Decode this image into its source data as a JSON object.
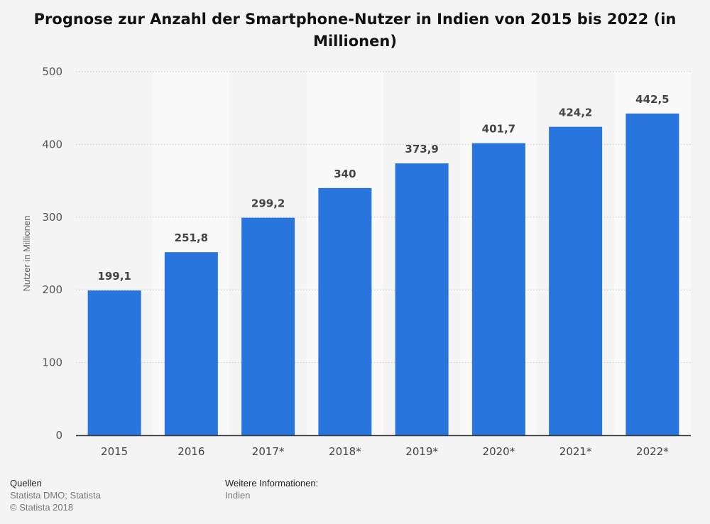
{
  "title": "Prognose zur Anzahl der Smartphone-Nutzer in Indien von 2015 bis 2022 (in Millionen)",
  "footer": {
    "sources_heading": "Quellen",
    "sources": "Statista DMO; Statista",
    "copyright": "© Statista 2018",
    "info_heading": "Weitere Informationen:",
    "info": "Indien"
  },
  "colors": {
    "bar": "#2876dd",
    "background": "#f4f4f4",
    "band": "#f9f9f9",
    "grid": "#c8c8c8"
  },
  "chart_data": {
    "type": "bar",
    "title": "Prognose zur Anzahl der Smartphone-Nutzer in Indien von 2015 bis 2022 (in Millionen)",
    "xlabel": "",
    "ylabel": "Nutzer in Millionen",
    "ylim": [
      0,
      500
    ],
    "yticks": [
      0,
      100,
      200,
      300,
      400,
      500
    ],
    "ytick_labels": [
      "0",
      "100",
      "200",
      "300",
      "400",
      "500"
    ],
    "grid": true,
    "categories": [
      "2015",
      "2016",
      "2017*",
      "2018*",
      "2019*",
      "2020*",
      "2021*",
      "2022*"
    ],
    "values": [
      199.1,
      251.8,
      299.2,
      340,
      373.9,
      401.7,
      424.2,
      442.5
    ],
    "data_labels": [
      "199,1",
      "251,8",
      "299,2",
      "340",
      "373,9",
      "401,7",
      "424,2",
      "442,5"
    ]
  }
}
